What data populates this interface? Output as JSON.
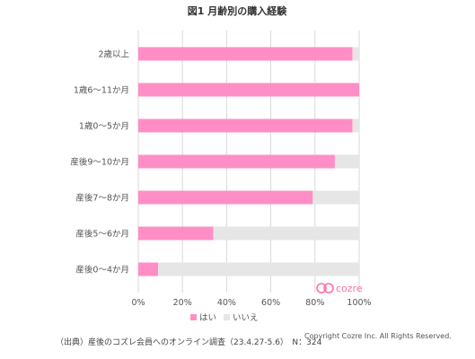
{
  "chart_data": {
    "type": "bar",
    "orientation": "horizontal",
    "stacked": true,
    "title": "図1 月齢別の購入経験",
    "categories": [
      "2歳以上",
      "1歳6～11か月",
      "1歳0～5か月",
      "産後9～10か月",
      "産後7～8か月",
      "産後5～6か月",
      "産後0～4か月"
    ],
    "series": [
      {
        "name": "はい",
        "values": [
          97,
          100,
          97,
          89,
          79,
          34,
          9
        ]
      },
      {
        "name": "いいえ",
        "values": [
          3,
          0,
          3,
          11,
          21,
          66,
          91
        ]
      }
    ],
    "xlim": [
      0,
      100
    ],
    "xticks": [
      "0%",
      "20%",
      "40%",
      "60%",
      "80%",
      "100%"
    ],
    "grid": "vertical",
    "legend_position": "bottom",
    "colors": {
      "yes": "#ff8ec6",
      "no": "#e6e6e6"
    }
  },
  "footer": {
    "source": "（出典）産後のコズレ会員へのオンライン調査（23.4.27-5.6）　N：324",
    "copyright": "Copyright Cozre Inc. All Rights Reserved.",
    "logo_text": "cozre"
  }
}
